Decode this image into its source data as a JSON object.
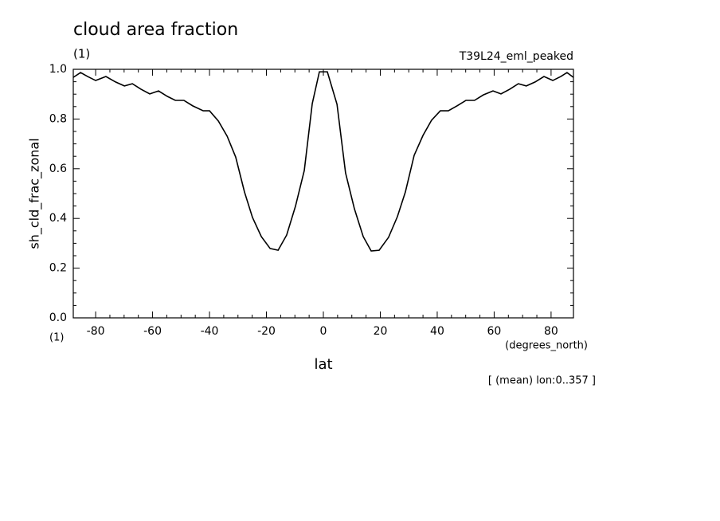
{
  "chart_data": {
    "type": "line",
    "title": "cloud area fraction",
    "title_units": "(1)",
    "subtitle": "T39L24_eml_peaked",
    "ylabel": "sh_cld_frac_zonal",
    "yaxis_units": "(1)",
    "xlabel": "lat",
    "xlabel_units": "(degrees_north)",
    "annotation": "[ (mean) lon:0..357 ]",
    "x": [
      -87.8,
      -85.3,
      -82.8,
      -80.0,
      -76.4,
      -73.0,
      -69.9,
      -67.1,
      -64.1,
      -61.0,
      -57.9,
      -54.8,
      -52.0,
      -49.0,
      -45.9,
      -42.2,
      -40.0,
      -36.9,
      -33.8,
      -30.8,
      -27.7,
      -24.9,
      -21.8,
      -18.7,
      -15.9,
      -12.9,
      -9.8,
      -6.7,
      -3.9,
      -1.4,
      1.4,
      4.8,
      7.8,
      10.9,
      14.0,
      16.8,
      19.6,
      22.9,
      26.0,
      28.8,
      31.9,
      35.0,
      38.0,
      41.1,
      43.9,
      47.0,
      50.1,
      53.1,
      56.2,
      59.6,
      62.4,
      65.5,
      68.5,
      71.3,
      74.4,
      77.5,
      80.6,
      83.4,
      85.6,
      87.8
    ],
    "series": [
      {
        "color": "#000000",
        "values": [
          0.968,
          0.987,
          0.971,
          0.955,
          0.971,
          0.949,
          0.933,
          0.942,
          0.92,
          0.901,
          0.913,
          0.891,
          0.875,
          0.875,
          0.853,
          0.833,
          0.833,
          0.792,
          0.731,
          0.647,
          0.506,
          0.404,
          0.327,
          0.279,
          0.272,
          0.333,
          0.449,
          0.593,
          0.862,
          0.99,
          0.99,
          0.859,
          0.583,
          0.439,
          0.327,
          0.269,
          0.272,
          0.324,
          0.407,
          0.506,
          0.654,
          0.734,
          0.795,
          0.833,
          0.833,
          0.853,
          0.875,
          0.875,
          0.897,
          0.913,
          0.901,
          0.92,
          0.942,
          0.933,
          0.949,
          0.971,
          0.955,
          0.971,
          0.987,
          0.968
        ]
      }
    ],
    "xlim": [
      -87.86,
      87.86
    ],
    "xticks": [
      -80,
      -60,
      -40,
      -20,
      0,
      20,
      40,
      60,
      80
    ],
    "ylim": [
      0,
      1
    ],
    "yticks": [
      {
        "value": 0,
        "label": "0.0"
      },
      0.2,
      0.4,
      0.6,
      0.8,
      {
        "value": 1,
        "label": "1.0"
      }
    ]
  }
}
